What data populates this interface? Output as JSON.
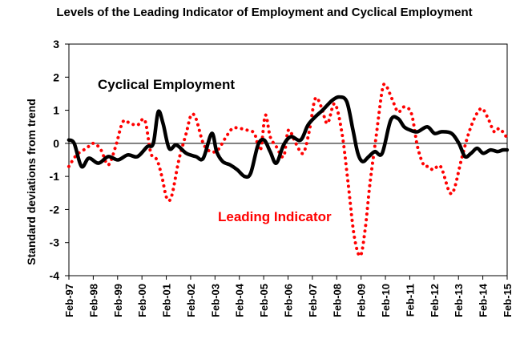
{
  "chart_data": {
    "type": "line",
    "title": "Levels of the Leading Indicator of Employment and Cyclical Employment",
    "ylabel": "Standard deviations from trend",
    "xlabel": "",
    "ylim": [
      -4,
      3
    ],
    "yticks": [
      "3",
      "2",
      "1",
      "0",
      "-1",
      "-2",
      "-3",
      "-4"
    ],
    "ytick_values": [
      3,
      2,
      1,
      0,
      -1,
      -2,
      -3,
      -4
    ],
    "xlim": [
      1997.083,
      2015.083
    ],
    "xtick_labels": [
      "Feb-97",
      "Feb-98",
      "Feb-99",
      "Feb-00",
      "Feb-01",
      "Feb-02",
      "Feb-03",
      "Feb-04",
      "Feb-05",
      "Feb-06",
      "Feb-07",
      "Feb-08",
      "Feb-09",
      "Feb-10",
      "Feb-11",
      "Feb-12",
      "Feb-13",
      "Feb-14",
      "Feb-15"
    ],
    "xtick_values": [
      1997.083,
      1998.083,
      1999.083,
      2000.083,
      2001.083,
      2002.083,
      2003.083,
      2004.083,
      2005.083,
      2006.083,
      2007.083,
      2008.083,
      2009.083,
      2010.083,
      2011.083,
      2012.083,
      2013.083,
      2014.083,
      2015.083
    ],
    "series": [
      {
        "name": "Cyclical Employment",
        "label": "Cyclical Employment",
        "color": "#000000",
        "style": "solid",
        "x": [
          1997.08,
          1997.3,
          1997.6,
          1997.9,
          1998.3,
          1998.7,
          1999.1,
          1999.5,
          1999.9,
          2000.3,
          2000.55,
          2000.75,
          2000.95,
          2001.2,
          2001.5,
          2001.9,
          2002.3,
          2002.6,
          2002.95,
          2003.15,
          2003.4,
          2003.7,
          2004.0,
          2004.3,
          2004.55,
          2004.85,
          2005.1,
          2005.35,
          2005.6,
          2005.9,
          2006.2,
          2006.6,
          2006.9,
          2007.2,
          2007.5,
          2007.9,
          2008.2,
          2008.5,
          2008.75,
          2008.95,
          2009.15,
          2009.4,
          2009.65,
          2009.95,
          2010.3,
          2010.6,
          2010.85,
          2011.1,
          2011.4,
          2011.8,
          2012.1,
          2012.4,
          2012.8,
          2013.1,
          2013.35,
          2013.6,
          2013.85,
          2014.1,
          2014.4,
          2014.7,
          2014.9,
          2015.08
        ],
        "y": [
          0.1,
          0.0,
          -0.7,
          -0.45,
          -0.6,
          -0.4,
          -0.5,
          -0.35,
          -0.4,
          -0.1,
          0.0,
          0.95,
          0.6,
          -0.15,
          -0.05,
          -0.3,
          -0.4,
          -0.45,
          0.3,
          -0.25,
          -0.55,
          -0.65,
          -0.8,
          -1.0,
          -0.9,
          -0.05,
          0.1,
          -0.25,
          -0.6,
          -0.05,
          0.2,
          0.1,
          0.55,
          0.8,
          1.0,
          1.3,
          1.4,
          1.25,
          0.4,
          -0.3,
          -0.55,
          -0.4,
          -0.25,
          -0.3,
          0.7,
          0.75,
          0.5,
          0.4,
          0.35,
          0.5,
          0.3,
          0.35,
          0.3,
          0.0,
          -0.4,
          -0.3,
          -0.15,
          -0.3,
          -0.2,
          -0.25,
          -0.2,
          -0.2
        ]
      },
      {
        "name": "Leading Indicator",
        "label": "Leading Indicator",
        "color": "#ff0000",
        "style": "dotted",
        "x": [
          1997.08,
          1997.4,
          1997.8,
          1998.1,
          1998.4,
          1998.7,
          1999.0,
          1999.3,
          1999.6,
          1999.9,
          2000.2,
          2000.45,
          2000.7,
          2000.9,
          2001.1,
          2001.3,
          2001.6,
          2001.9,
          2002.1,
          2002.3,
          2002.6,
          2002.9,
          2003.2,
          2003.5,
          2003.8,
          2004.1,
          2004.4,
          2004.7,
          2004.95,
          2005.15,
          2005.35,
          2005.6,
          2005.9,
          2006.1,
          2006.4,
          2006.7,
          2006.95,
          2007.2,
          2007.45,
          2007.7,
          2008.0,
          2008.3,
          2008.55,
          2008.8,
          2009.05,
          2009.25,
          2009.45,
          2009.7,
          2009.95,
          2010.1,
          2010.35,
          2010.6,
          2010.85,
          2011.15,
          2011.4,
          2011.65,
          2011.85,
          2012.05,
          2012.35,
          2012.7,
          2012.9,
          2013.2,
          2013.5,
          2013.8,
          2014.05,
          2014.3,
          2014.55,
          2014.75,
          2014.95,
          2015.08
        ],
        "y": [
          -0.7,
          -0.35,
          -0.15,
          0.0,
          -0.2,
          -0.65,
          -0.1,
          0.65,
          0.6,
          0.55,
          0.7,
          -0.3,
          -0.5,
          -1.0,
          -1.65,
          -1.6,
          -0.5,
          0.3,
          0.85,
          0.75,
          0.0,
          -0.25,
          -0.2,
          0.15,
          0.45,
          0.45,
          0.4,
          0.3,
          -0.2,
          0.85,
          0.2,
          -0.1,
          -0.4,
          0.4,
          0.0,
          -0.3,
          0.35,
          1.35,
          1.1,
          0.6,
          1.2,
          0.3,
          -1.2,
          -2.8,
          -3.4,
          -2.6,
          -1.2,
          0.2,
          1.6,
          1.75,
          1.35,
          0.95,
          1.1,
          0.9,
          -0.1,
          -0.65,
          -0.7,
          -0.8,
          -0.7,
          -1.45,
          -1.4,
          -0.5,
          0.3,
          0.85,
          1.05,
          0.75,
          0.35,
          0.45,
          0.3,
          0.15
        ]
      }
    ]
  }
}
